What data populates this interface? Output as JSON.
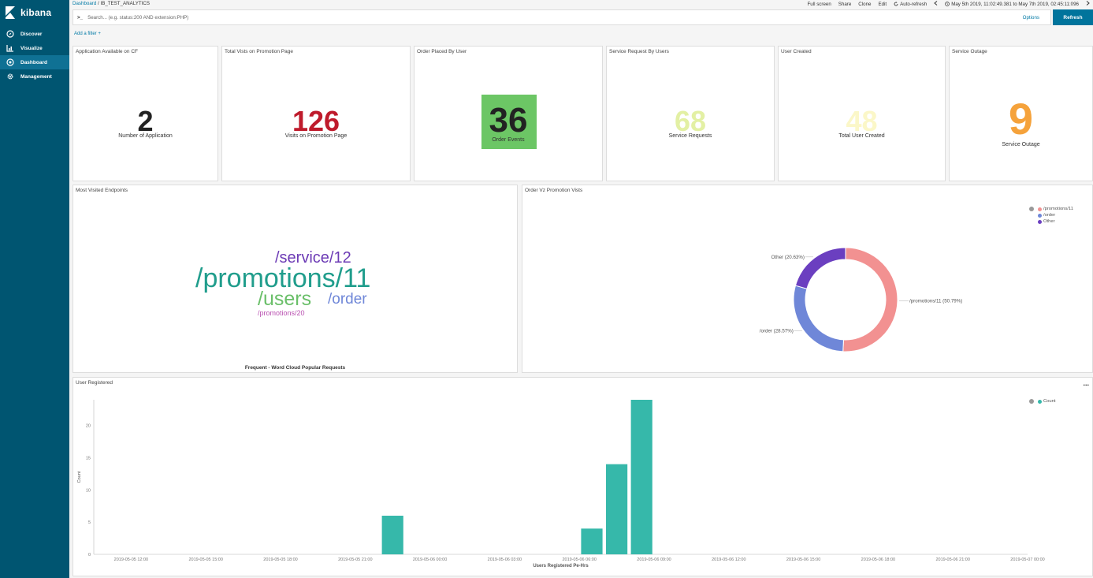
{
  "app": {
    "brand": "kibana"
  },
  "sidebar": {
    "items": [
      {
        "label": "Discover",
        "icon": "compass-icon"
      },
      {
        "label": "Visualize",
        "icon": "bar-chart-icon"
      },
      {
        "label": "Dashboard",
        "icon": "dashboard-icon",
        "active": true
      },
      {
        "label": "Management",
        "icon": "gear-icon"
      }
    ]
  },
  "header": {
    "breadcrumb_root": "Dashboard",
    "breadcrumb_sep": "/",
    "breadcrumb_current": "IB_TEST_ANALYTICS",
    "actions": [
      "Full screen",
      "Share",
      "Clone",
      "Edit"
    ],
    "auto_refresh": "Auto-refresh",
    "time_range": "May 5th 2019, 11:02:49.381 to May 7th 2019, 02:45:11:096"
  },
  "search": {
    "prompt": ">_",
    "placeholder": "Search... (e.g. status:200 AND extension:PHP)",
    "options_label": "Options",
    "refresh_label": "Refresh"
  },
  "filters": {
    "add_label": "Add a filter +"
  },
  "metrics": [
    {
      "title": "Application Available on CF",
      "value": "2",
      "label": "Number of Application",
      "color": "#222222"
    },
    {
      "title": "Total Vists on Promotion Page",
      "value": "126",
      "label": "Visits on Promotion Page",
      "color": "#bf1b2c"
    },
    {
      "title": "Order Placed By User",
      "value": "36",
      "label": "Order Events",
      "color": "#222222",
      "bg": "#6cc665"
    },
    {
      "title": "Service Request By Users",
      "value": "68",
      "label": "Service Requests",
      "color": "#e3f0a4"
    },
    {
      "title": "User Created",
      "value": "48",
      "label": "Total User Created",
      "color": "#fbf7c8"
    },
    {
      "title": "Service Outage",
      "value": "9",
      "label": "Service Outage",
      "color": "#f5a23b"
    }
  ],
  "wordcloud": {
    "title": "Most Visited Endpoints",
    "caption": "Frequent - Word Cloud Popular Requests",
    "words": [
      {
        "text": "/service/12",
        "color": "#6c3bb5"
      },
      {
        "text": "/promotions/11",
        "color": "#209d8c"
      },
      {
        "text": "/users",
        "color": "#6abf69"
      },
      {
        "text": "/order",
        "color": "#6f87d8"
      },
      {
        "text": "/promotions/20",
        "color": "#b84fb0"
      }
    ]
  },
  "donut": {
    "title": "Order Vz Promotion Vists",
    "legend": [
      {
        "label": "/promotions/11",
        "color": "#f29191"
      },
      {
        "label": "/order",
        "color": "#6f87d8"
      },
      {
        "label": "Other",
        "color": "#6b3fc0"
      }
    ]
  },
  "user_registered": {
    "title": "User Registered",
    "menu": "...",
    "legend_label": "Count",
    "legend_color": "#36b8aa"
  },
  "chart_data": [
    {
      "type": "pie",
      "title": "Order Vz Promotion Vists",
      "donut": true,
      "slices": [
        {
          "label": "/promotions/11",
          "percent": 50.79,
          "display": "/promotions/11 (50.79%)",
          "color": "#f29191"
        },
        {
          "label": "/order",
          "percent": 28.57,
          "display": "/order (28.57%)",
          "color": "#6f87d8"
        },
        {
          "label": "Other",
          "percent": 20.63,
          "display": "Other (20.63%)",
          "color": "#6b3fc0"
        }
      ]
    },
    {
      "type": "bar",
      "title": "User Registered",
      "xlabel": "Users Registered Pe-Hrs",
      "ylabel": "Count",
      "ylim": [
        0,
        24
      ],
      "yticks": [
        0,
        5,
        10,
        15,
        20
      ],
      "xticks": [
        "2019-05-05 12:00",
        "2019-05-05 15:00",
        "2019-05-05 18:00",
        "2019-05-05 21:00",
        "2019-05-06 00:00",
        "2019-05-06 03:00",
        "2019-05-06 06:00",
        "2019-05-06 09:00",
        "2019-05-06 12:00",
        "2019-05-06 15:00",
        "2019-05-06 18:00",
        "2019-05-06 21:00",
        "2019-05-07 00:00"
      ],
      "bars": [
        {
          "hours": 10.5,
          "value": 6
        },
        {
          "hours": 18.5,
          "value": 4
        },
        {
          "hours": 19.5,
          "value": 14
        },
        {
          "hours": 20.5,
          "value": 24
        }
      ],
      "color": "#36b8aa"
    }
  ]
}
